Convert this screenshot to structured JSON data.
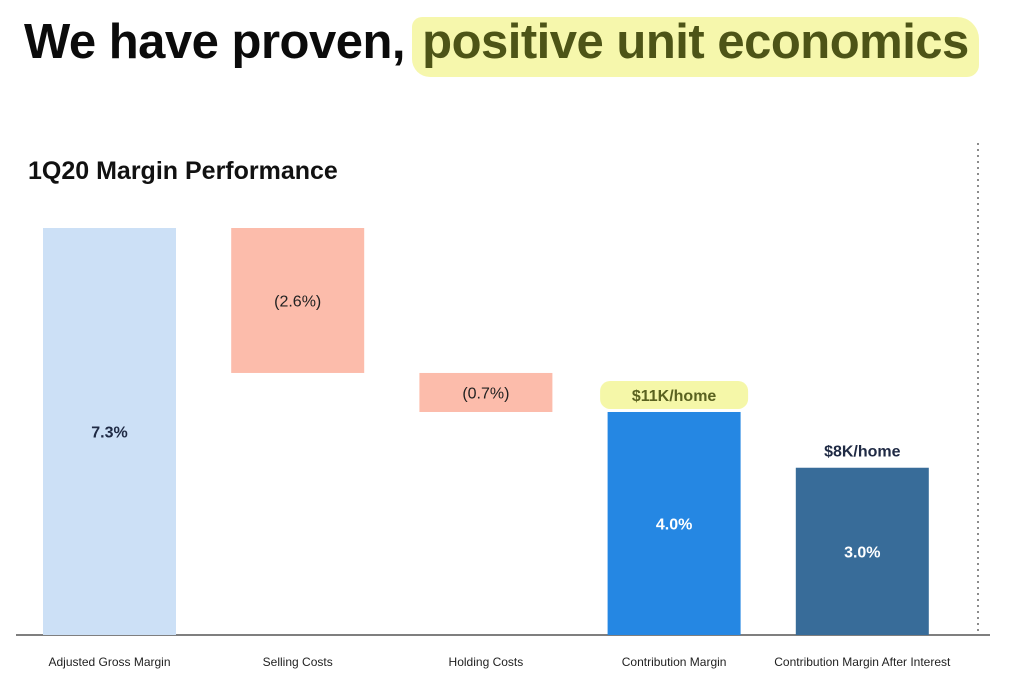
{
  "header": {
    "title_plain": "We have proven,",
    "title_highlight": "positive unit economics"
  },
  "colors": {
    "gross": "#cce0f6",
    "cost": "#fcbcab",
    "contribution": "#2587e3",
    "after_interest": "#386c99",
    "highlight": "#f5f7a8",
    "dark_text": "#1f2a44"
  },
  "chart_data": {
    "type": "bar",
    "subtype": "waterfall",
    "title": "1Q20 Margin Performance",
    "categories": [
      "Adjusted Gross Margin",
      "Selling Costs",
      "Holding Costs",
      "Contribution Margin",
      "Contribution Margin After Interest"
    ],
    "values": [
      7.3,
      -2.6,
      -0.7,
      4.0,
      3.0
    ],
    "value_labels": [
      "7.3%",
      "(2.6%)",
      "(0.7%)",
      "4.0%",
      "3.0%"
    ],
    "bar_kind": [
      "total",
      "delta",
      "delta",
      "total",
      "total"
    ],
    "annotations": [
      {
        "category": "Contribution Margin",
        "text": "$11K/home",
        "highlighted": true
      },
      {
        "category": "Contribution Margin After Interest",
        "text": "$8K/home",
        "highlighted": false
      }
    ],
    "ylim": [
      0,
      7.3
    ],
    "xlabel": "",
    "ylabel": "",
    "grid": false,
    "legend": "none"
  }
}
